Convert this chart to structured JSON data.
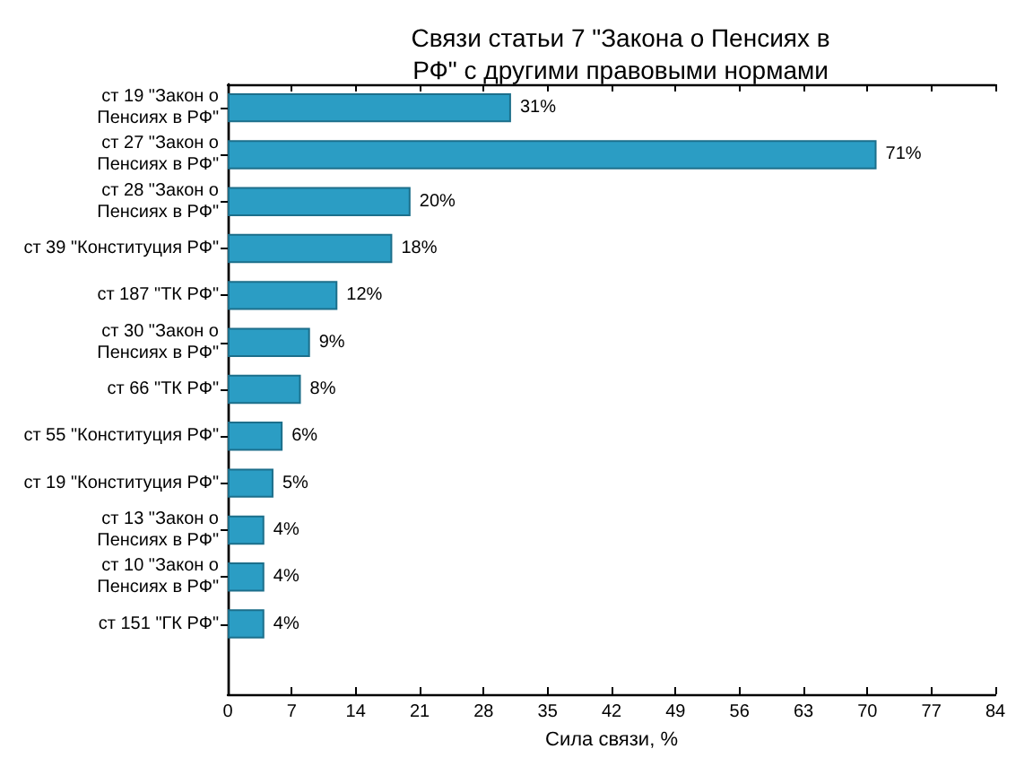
{
  "chart_data": {
    "type": "bar",
    "orientation": "horizontal",
    "title": "Связи статьи 7 \"Закона о Пенсиях в\nРФ\" с другими правовыми нормами",
    "xlabel": "Сила связи, %",
    "categories": [
      "ст 19 \"Закон о\nПенсиях в РФ\"",
      "ст 27 \"Закон о\nПенсиях в РФ\"",
      "ст 28 \"Закон о\nПенсиях в РФ\"",
      "ст 39 \"Конституция РФ\"",
      "ст 187 \"ТК РФ\"",
      "ст 30 \"Закон о\nПенсиях в РФ\"",
      "ст 66 \"ТК РФ\"",
      "ст 55 \"Конституция РФ\"",
      "ст 19 \"Конституция РФ\"",
      "ст 13 \"Закон о\nПенсиях в РФ\"",
      "ст 10 \"Закон о\nПенсиях в РФ\"",
      "ст 151 \"ГК РФ\""
    ],
    "values": [
      31,
      71,
      20,
      18,
      12,
      9,
      8,
      6,
      5,
      4,
      4,
      4
    ],
    "color": "#2b9dc4",
    "value_labels": [
      "31%",
      "71%",
      "20%",
      "18%",
      "12%",
      "9%",
      "8%",
      "6%",
      "5%",
      "4%",
      "4%",
      "4%"
    ],
    "xlim": [
      0,
      84
    ],
    "xticks": [
      0,
      7,
      14,
      21,
      28,
      35,
      42,
      49,
      56,
      63,
      70,
      77,
      84
    ],
    "grid": false
  }
}
